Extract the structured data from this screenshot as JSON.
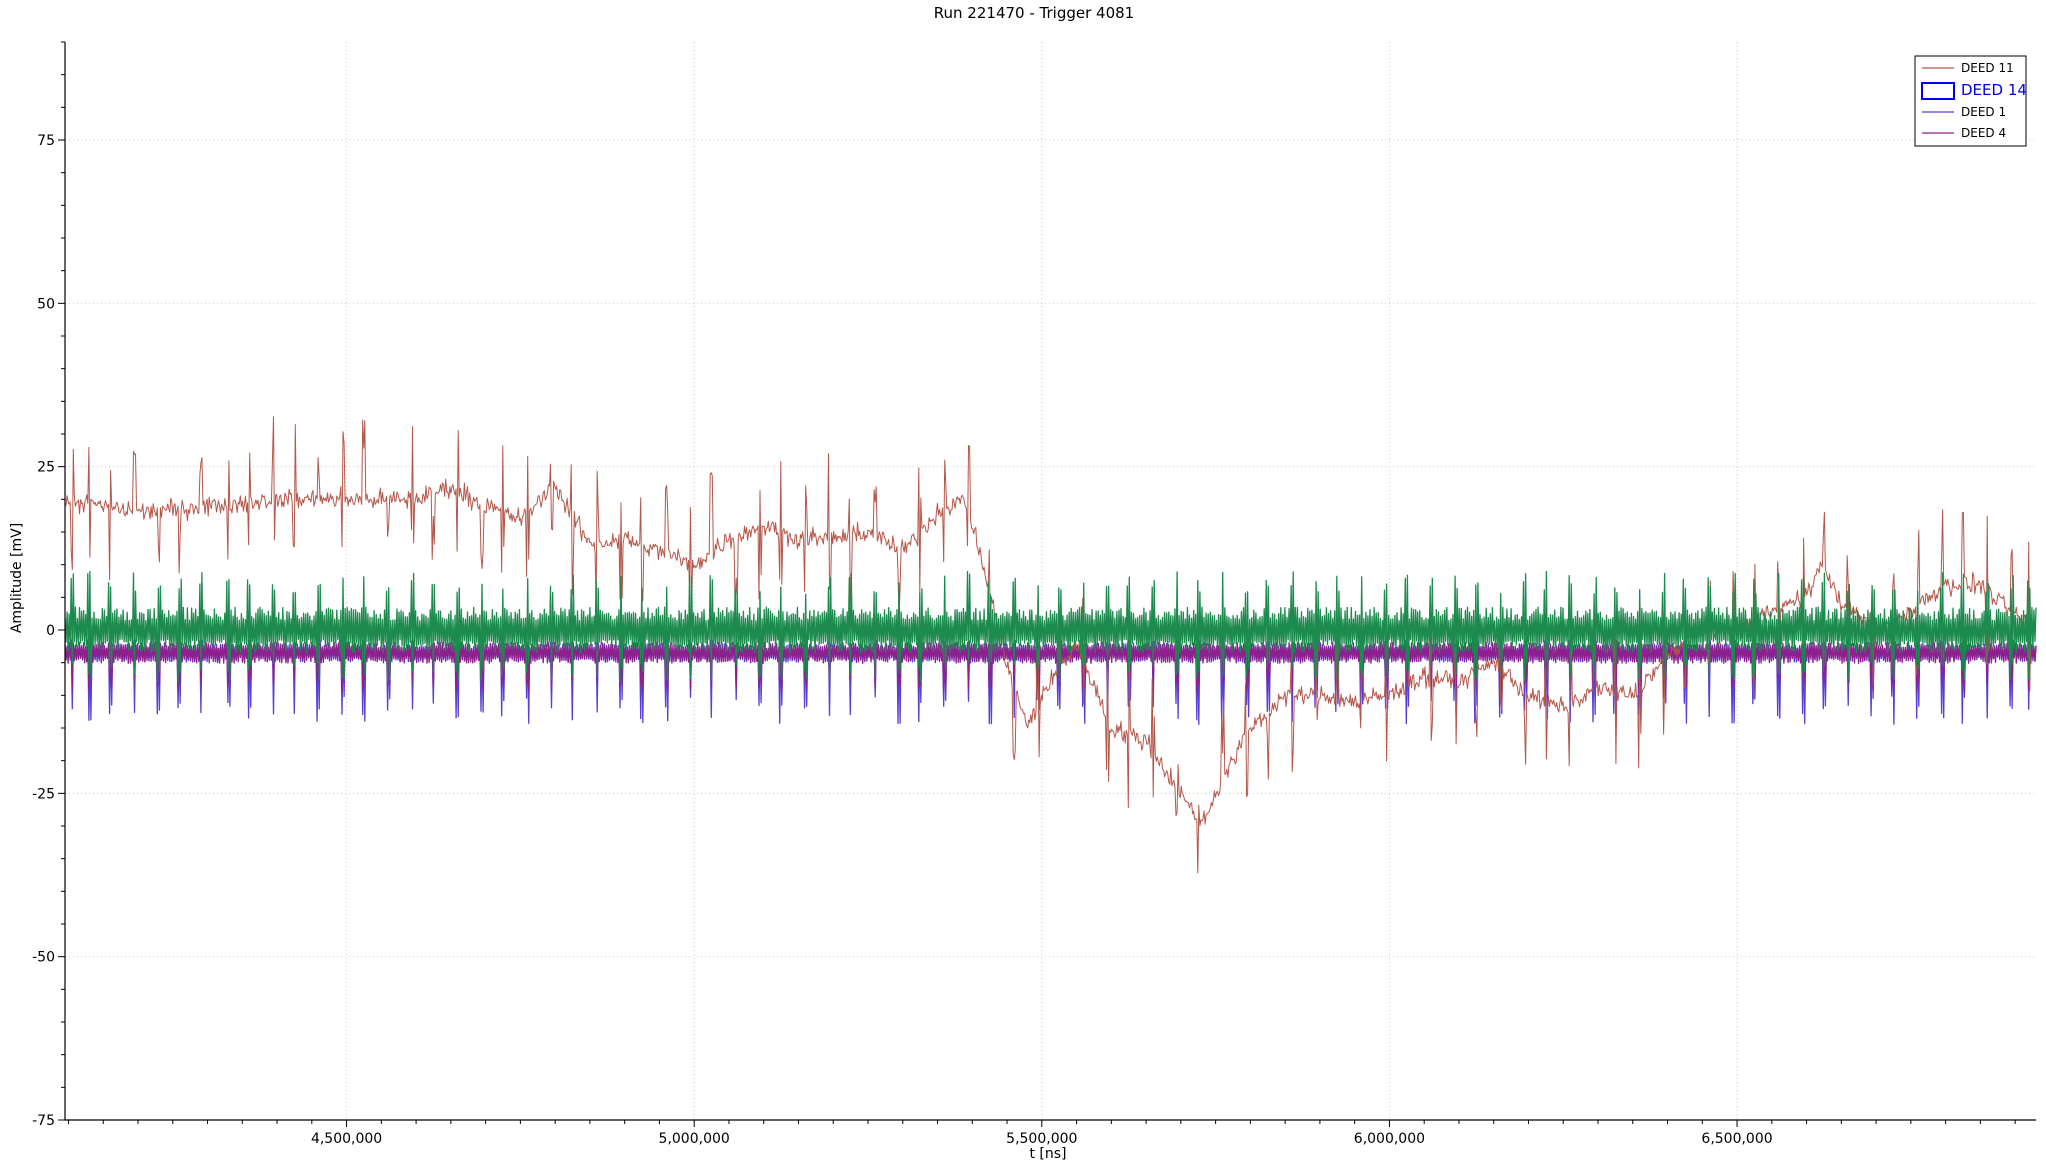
{
  "chart_data": {
    "type": "line",
    "title": "Run 221470 - Trigger 4081",
    "xlabel": "t [ns]",
    "ylabel": "Amplitude [mV]",
    "xlim": [
      4095000,
      6930000
    ],
    "ylim": [
      -75,
      90
    ],
    "x_ticks": [
      4500000,
      5000000,
      5500000,
      6000000,
      6500000
    ],
    "x_tick_labels": [
      "4,500,000",
      "5,000,000",
      "5,500,000",
      "6,000,000",
      "6,500,000"
    ],
    "y_ticks": [
      75,
      50,
      25,
      0,
      -25,
      -50,
      -75
    ],
    "y_tick_labels": [
      "75",
      "50",
      "25",
      "0",
      "-25",
      "-50",
      "-75"
    ],
    "grid": true,
    "legend_position": "top-right",
    "series": [
      {
        "name": "DEED 11",
        "color": "#b5574a",
        "legend_style": "line",
        "noise": 2.2,
        "baseline": [
          [
            4095000,
            20
          ],
          [
            4200000,
            18
          ],
          [
            4300000,
            19
          ],
          [
            4400000,
            20
          ],
          [
            4500000,
            20
          ],
          [
            4550000,
            20
          ],
          [
            4600000,
            20
          ],
          [
            4650000,
            22
          ],
          [
            4700000,
            19
          ],
          [
            4750000,
            17
          ],
          [
            4800000,
            22
          ],
          [
            4850000,
            13
          ],
          [
            4900000,
            14
          ],
          [
            4950000,
            12
          ],
          [
            5000000,
            10
          ],
          [
            5050000,
            14
          ],
          [
            5100000,
            16
          ],
          [
            5150000,
            14
          ],
          [
            5200000,
            14
          ],
          [
            5250000,
            15
          ],
          [
            5300000,
            12
          ],
          [
            5350000,
            18
          ],
          [
            5390000,
            20
          ],
          [
            5420000,
            8
          ],
          [
            5450000,
            -5
          ],
          [
            5480000,
            -15
          ],
          [
            5500000,
            -10
          ],
          [
            5550000,
            -2
          ],
          [
            5600000,
            -15
          ],
          [
            5650000,
            -17
          ],
          [
            5700000,
            -25
          ],
          [
            5730000,
            -30
          ],
          [
            5750000,
            -25
          ],
          [
            5800000,
            -15
          ],
          [
            5850000,
            -10
          ],
          [
            5900000,
            -10
          ],
          [
            5950000,
            -11
          ],
          [
            6000000,
            -10
          ],
          [
            6050000,
            -7
          ],
          [
            6100000,
            -8
          ],
          [
            6150000,
            -5
          ],
          [
            6200000,
            -10
          ],
          [
            6250000,
            -12
          ],
          [
            6300000,
            -9
          ],
          [
            6350000,
            -10
          ],
          [
            6400000,
            -4
          ],
          [
            6450000,
            0
          ],
          [
            6500000,
            0
          ],
          [
            6550000,
            3
          ],
          [
            6600000,
            5
          ],
          [
            6620000,
            10
          ],
          [
            6650000,
            4
          ],
          [
            6700000,
            0
          ],
          [
            6750000,
            3
          ],
          [
            6800000,
            7
          ],
          [
            6850000,
            7
          ],
          [
            6900000,
            2
          ],
          [
            6930000,
            1
          ]
        ]
      },
      {
        "name": "DEED 14",
        "color": "#1d8a4e",
        "legend_style": "box",
        "legend_color": "#0000ee",
        "level": 0,
        "band": 3.5,
        "spike_up": 9,
        "spike_down": 8
      },
      {
        "name": "DEED 1",
        "color": "#5a3fd6",
        "legend_style": "line",
        "level": -3.5,
        "band": 1.4,
        "spike_up": 2,
        "spike_down": 11
      },
      {
        "name": "DEED 4",
        "color": "#8e1f8e",
        "legend_style": "line",
        "level": -3.5,
        "band": 1.6,
        "spike_up": 1.5,
        "spike_down": 6
      }
    ],
    "spike_times": [
      4105000,
      4130000,
      4160000,
      4195000,
      4230000,
      4260000,
      4290000,
      4330000,
      4360000,
      4395000,
      4425000,
      4460000,
      4495000,
      4525000,
      4560000,
      4595000,
      4625000,
      4660000,
      4695000,
      4725000,
      4760000,
      4795000,
      4825000,
      4860000,
      4895000,
      4925000,
      4960000,
      4995000,
      5025000,
      5060000,
      5095000,
      5125000,
      5160000,
      5195000,
      5225000,
      5260000,
      5295000,
      5325000,
      5360000,
      5395000,
      5425000,
      5460000,
      5495000,
      5525000,
      5560000,
      5595000,
      5625000,
      5660000,
      5695000,
      5725000,
      5760000,
      5795000,
      5825000,
      5860000,
      5895000,
      5925000,
      5960000,
      5995000,
      6025000,
      6060000,
      6095000,
      6125000,
      6160000,
      6195000,
      6225000,
      6260000,
      6295000,
      6325000,
      6360000,
      6395000,
      6425000,
      6460000,
      6495000,
      6525000,
      6560000,
      6595000,
      6625000,
      6660000,
      6695000,
      6725000,
      6760000,
      6795000,
      6825000,
      6860000,
      6895000,
      6920000
    ]
  }
}
